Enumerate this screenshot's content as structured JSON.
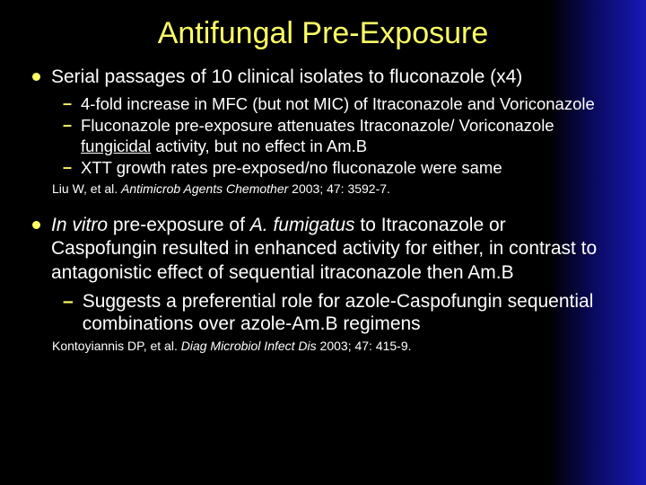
{
  "title": "Antifungal Pre-Exposure",
  "block1": {
    "main": "Serial passages of 10 clinical isolates to fluconazole (x4)",
    "subs": [
      "4-fold increase in MFC (but not MIC) of Itraconazole and Voriconazole",
      "Fluconazole pre-exposure attenuates Itraconazole/ Voriconazole <u>fungicidal</u> activity, but no effect in Am.B",
      "XTT growth rates pre-exposed/no fluconazole were same"
    ],
    "citation_author": "Liu W, et al.  ",
    "citation_journal": "Antimicrob Agents Chemother  ",
    "citation_ref": "2003; 47: 3592-7."
  },
  "block2": {
    "main": "<i>In vitro</i> pre-exposure of <i>A. fumigatus</i> to Itraconazole or Caspofungin resulted in enhanced activity for either, in contrast to antagonistic effect of sequential itraconazole then Am.B",
    "subs": [
      "Suggests a preferential role for azole-Caspofungin sequential combinations over azole-Am.B regimens"
    ],
    "citation_author": "Kontoyiannis DP, et al.  ",
    "citation_journal": "Diag Microbiol Infect Dis ",
    "citation_ref": "2003; 47: 415-9."
  },
  "colors": {
    "title_color": "#ffff66",
    "bullet_color": "#ffff66",
    "text_color": "#ffffff",
    "bg_start": "#000000",
    "bg_end": "#1818b8"
  }
}
